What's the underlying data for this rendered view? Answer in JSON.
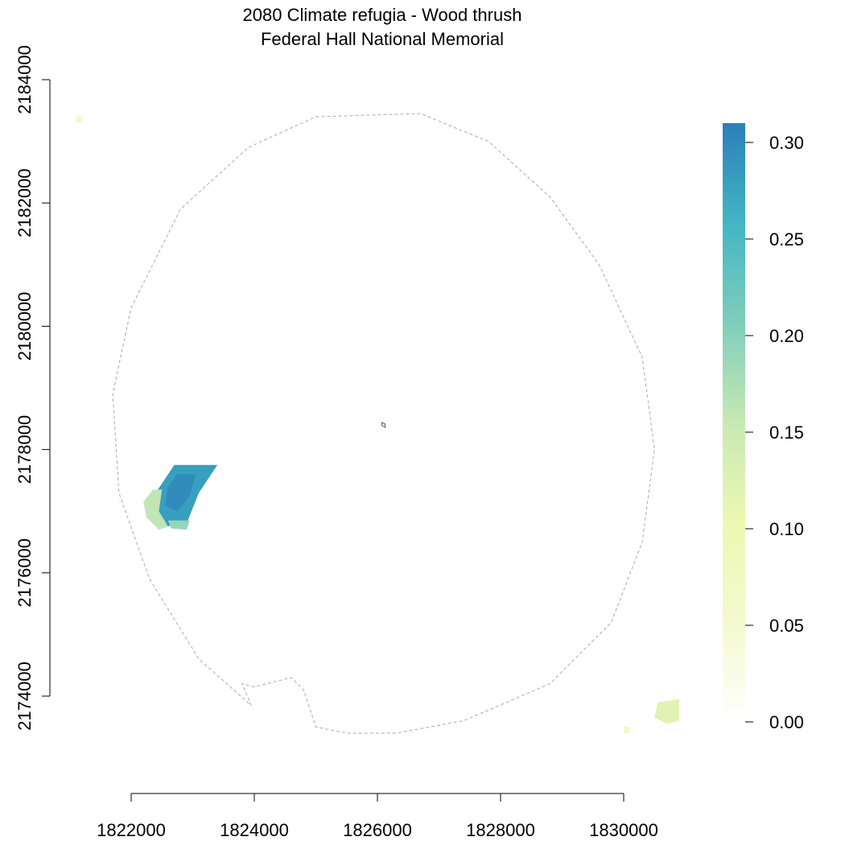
{
  "title": {
    "line1": "2080 Climate refugia - Wood thrush",
    "line2": "Federal Hall National Memorial"
  },
  "x_axis": {
    "range": [
      1822000,
      1830000
    ],
    "ticks": [
      1822000,
      1824000,
      1826000,
      1828000,
      1830000
    ],
    "tick_labels": [
      "1822000",
      "1824000",
      "1826000",
      "1828000",
      "1830000"
    ]
  },
  "y_axis": {
    "range": [
      2174000,
      2184000
    ],
    "ticks": [
      2174000,
      2176000,
      2178000,
      2180000,
      2182000,
      2184000
    ],
    "tick_labels": [
      "2174000",
      "2176000",
      "2178000",
      "2180000",
      "2182000",
      "2184000"
    ]
  },
  "legend": {
    "position": "right",
    "range": [
      0,
      0.31
    ],
    "colors": [
      "#ffffff",
      "#f4f9cf",
      "#edf8b1",
      "#c7e9b4",
      "#7fcdbb",
      "#41b6c4",
      "#2c7fb8"
    ],
    "ticks": [
      0.0,
      0.05,
      0.1,
      0.15,
      0.2,
      0.25,
      0.3
    ],
    "tick_labels": [
      "0.00",
      "0.05",
      "0.10",
      "0.15",
      "0.20",
      "0.25",
      "0.30"
    ]
  },
  "map": {
    "buffer_boundary_style": "dashed gray",
    "park_marker_center": [
      1826100,
      2178400
    ],
    "buffer_boundary": [
      [
        1825000,
        2183400
      ],
      [
        1826700,
        2183450
      ],
      [
        1827800,
        2183000
      ],
      [
        1828800,
        2182100
      ],
      [
        1829600,
        2181000
      ],
      [
        1830300,
        2179500
      ],
      [
        1830500,
        2178000
      ],
      [
        1830300,
        2176500
      ],
      [
        1829800,
        2175200
      ],
      [
        1828800,
        2174200
      ],
      [
        1827400,
        2173600
      ],
      [
        1826300,
        2173400
      ],
      [
        1825500,
        2173400
      ],
      [
        1825000,
        2173500
      ],
      [
        1824800,
        2174100
      ],
      [
        1824600,
        2174300
      ],
      [
        1824000,
        2174150
      ],
      [
        1823800,
        2174200
      ],
      [
        1823950,
        2173850
      ],
      [
        1823100,
        2174600
      ],
      [
        1822300,
        2175900
      ],
      [
        1821800,
        2177300
      ],
      [
        1821700,
        2178900
      ],
      [
        1822000,
        2180300
      ],
      [
        1822800,
        2181900
      ],
      [
        1823900,
        2182900
      ]
    ],
    "refugia_patches": [
      {
        "id": "main",
        "value": 0.28,
        "polygon": [
          [
            1822700,
            2177750
          ],
          [
            1823400,
            2177750
          ],
          [
            1823100,
            2177300
          ],
          [
            1822900,
            2176800
          ],
          [
            1822550,
            2176750
          ],
          [
            1822300,
            2176950
          ],
          [
            1822400,
            2177300
          ]
        ]
      },
      {
        "id": "main-core",
        "value": 0.3,
        "polygon": [
          [
            1822750,
            2177600
          ],
          [
            1823050,
            2177600
          ],
          [
            1822950,
            2177250
          ],
          [
            1822750,
            2177000
          ],
          [
            1822550,
            2177100
          ],
          [
            1822600,
            2177400
          ]
        ]
      },
      {
        "id": "main-margin",
        "value": 0.16,
        "polygon": [
          [
            1822350,
            2177350
          ],
          [
            1822500,
            2177350
          ],
          [
            1822450,
            2177000
          ],
          [
            1822600,
            2176750
          ],
          [
            1822450,
            2176700
          ],
          [
            1822250,
            2176900
          ],
          [
            1822200,
            2177150
          ]
        ]
      },
      {
        "id": "main-south-edge",
        "value": 0.19,
        "polygon": [
          [
            1822600,
            2176850
          ],
          [
            1822950,
            2176850
          ],
          [
            1822900,
            2176700
          ],
          [
            1822650,
            2176720
          ]
        ]
      },
      {
        "id": "se-corner",
        "value": 0.12,
        "polygon": [
          [
            1830550,
            2173900
          ],
          [
            1830900,
            2173950
          ],
          [
            1830900,
            2173600
          ],
          [
            1830700,
            2173550
          ],
          [
            1830500,
            2173650
          ]
        ]
      },
      {
        "id": "se-speck",
        "value": 0.07,
        "polygon": [
          [
            1830000,
            2173500
          ],
          [
            1830100,
            2173500
          ],
          [
            1830100,
            2173400
          ],
          [
            1830000,
            2173400
          ]
        ]
      },
      {
        "id": "nw-speck",
        "value": 0.05,
        "polygon": [
          [
            1821100,
            2183420
          ],
          [
            1821200,
            2183420
          ],
          [
            1821200,
            2183300
          ],
          [
            1821100,
            2183300
          ]
        ]
      }
    ]
  }
}
